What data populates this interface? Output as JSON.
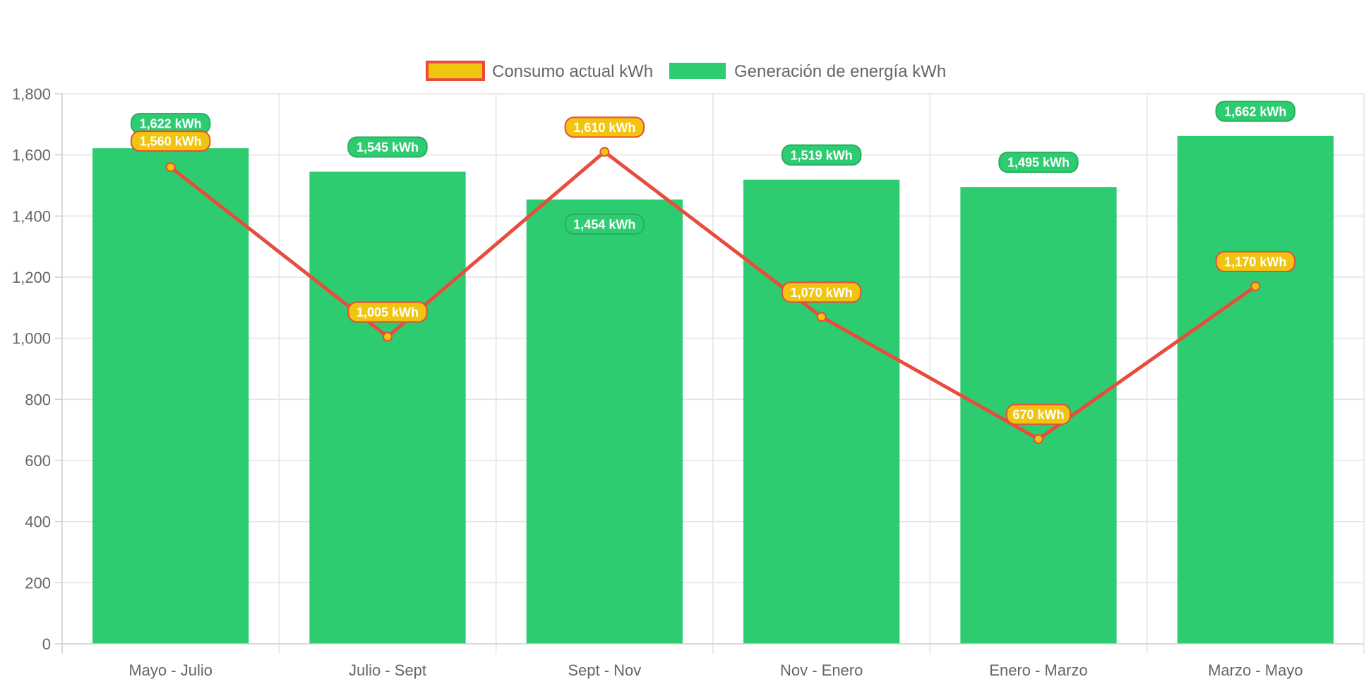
{
  "chart_data": {
    "type": "bar",
    "categories": [
      "Mayo - Julio",
      "Julio - Sept",
      "Sept - Nov",
      "Nov - Enero",
      "Enero - Marzo",
      "Marzo - Mayo"
    ],
    "series": [
      {
        "name": "Consumo actual kWh",
        "type": "line",
        "values": [
          1560,
          1005,
          1610,
          1070,
          670,
          1170
        ],
        "labels": [
          "1,560 kWh",
          "1,005 kWh",
          "1,610 kWh",
          "1,070 kWh",
          "670 kWh",
          "1,170 kWh"
        ],
        "color": "#e74c3c",
        "fill": "#f1c40f"
      },
      {
        "name": "Generación de energía kWh",
        "type": "bar",
        "values": [
          1622,
          1545,
          1454,
          1519,
          1495,
          1662
        ],
        "labels": [
          "1,622 kWh",
          "1,545 kWh",
          "1,454 kWh",
          "1,519 kWh",
          "1,495 kWh",
          "1,662 kWh"
        ],
        "color": "#2ecc71"
      }
    ],
    "ylim": [
      0,
      1800
    ],
    "yticks": [
      0,
      200,
      400,
      600,
      800,
      1000,
      1200,
      1400,
      1600,
      1800
    ],
    "ytick_labels": [
      "0",
      "200",
      "400",
      "600",
      "800",
      "1,000",
      "1,200",
      "1,400",
      "1,600",
      "1,800"
    ],
    "grid": true,
    "legend_position": "top"
  }
}
